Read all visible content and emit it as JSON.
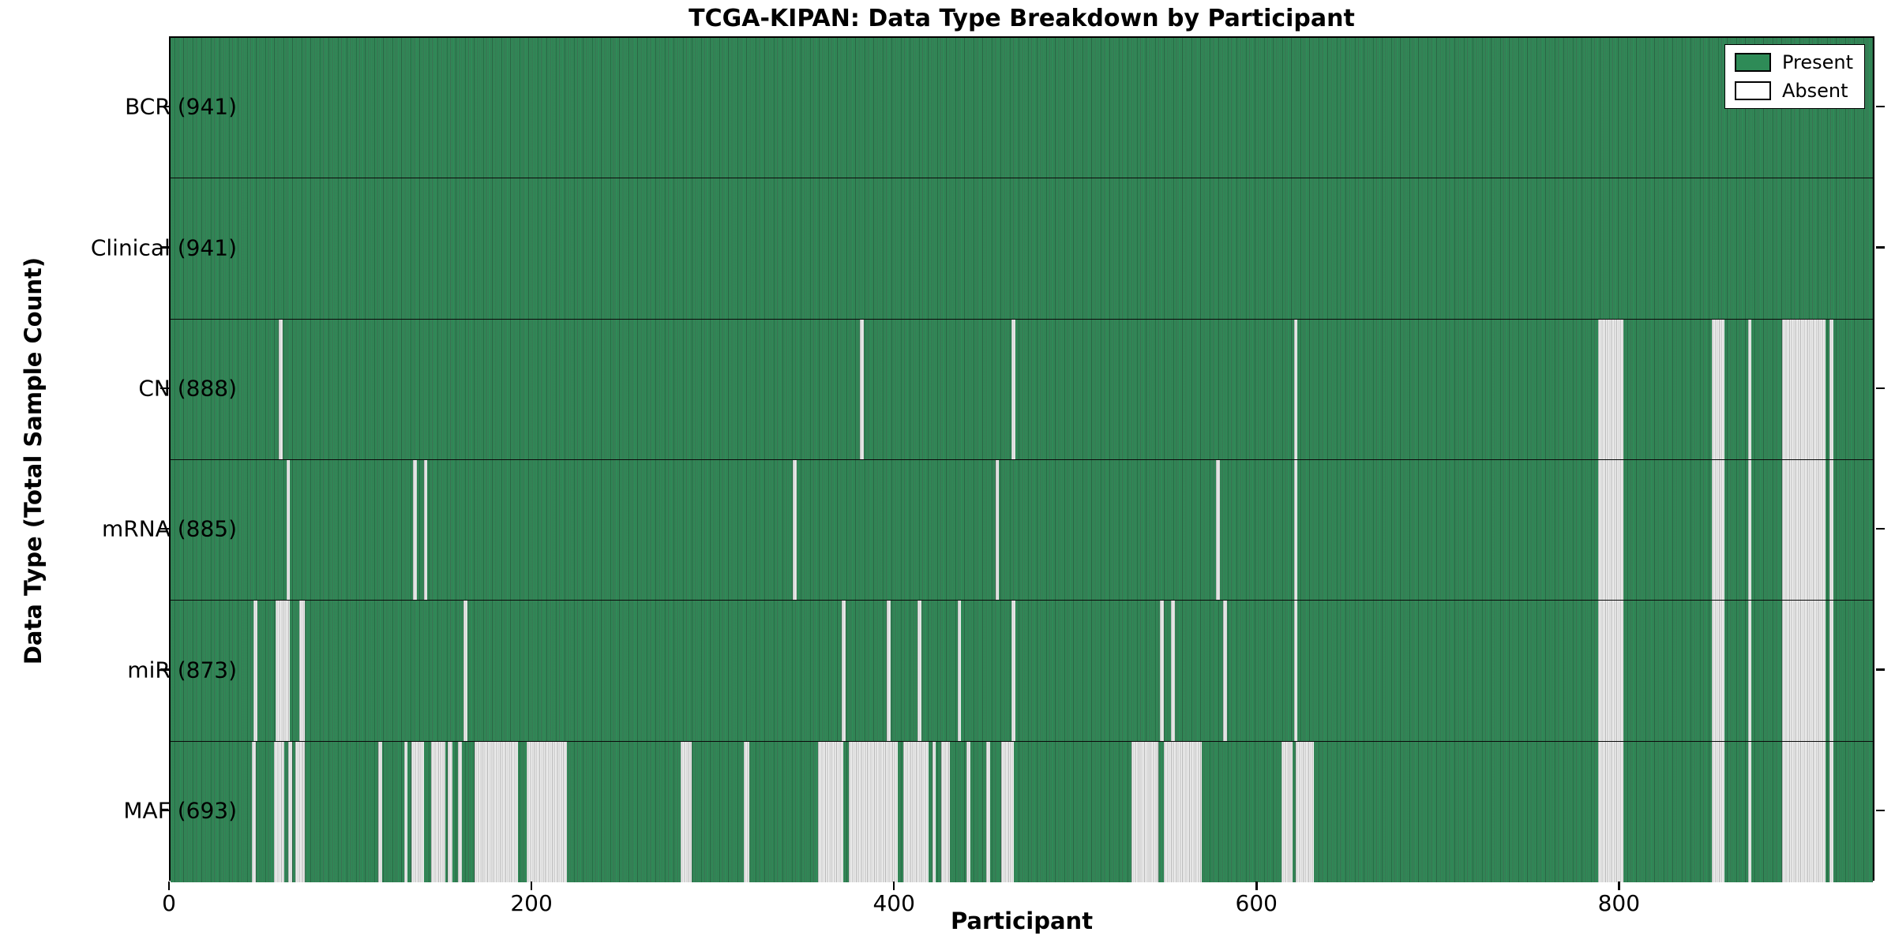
{
  "chart_data": {
    "type": "heatmap",
    "title": "TCGA-KIPAN: Data Type Breakdown by Participant",
    "xlabel": "Participant",
    "ylabel": "Data Type (Total Sample Count)",
    "x_ticks": [
      0,
      200,
      400,
      600,
      800
    ],
    "x_range": [
      0,
      941
    ],
    "grid": false,
    "legend_position": "upper right",
    "legend": [
      {
        "label": "Present",
        "color": "#2e8b57"
      },
      {
        "label": "Absent",
        "color": "#ffffff"
      }
    ],
    "colors": {
      "present": "#2e8b57",
      "absent": "#f0f0f0",
      "bar_edge": "#000000"
    },
    "rows": [
      {
        "data_type": "BCR",
        "total": 941,
        "label": "BCR (941)",
        "absent_ranges": []
      },
      {
        "data_type": "Clinical",
        "total": 941,
        "label": "Clinical (941)",
        "absent_ranges": []
      },
      {
        "data_type": "CN",
        "total": 888,
        "label": "CN (888)",
        "absent_ranges": [
          [
            60,
            62
          ],
          [
            381,
            383
          ],
          [
            465,
            467
          ],
          [
            621,
            623
          ],
          [
            789,
            803
          ],
          [
            852,
            859
          ],
          [
            872,
            874
          ],
          [
            891,
            915
          ],
          [
            917,
            919
          ]
        ]
      },
      {
        "data_type": "mRNA",
        "total": 885,
        "label": "mRNA (885)",
        "absent_ranges": [
          [
            64,
            66
          ],
          [
            134,
            136
          ],
          [
            140,
            142
          ],
          [
            344,
            346
          ],
          [
            456,
            458
          ],
          [
            578,
            580
          ],
          [
            621,
            623
          ],
          [
            789,
            803
          ],
          [
            852,
            859
          ],
          [
            872,
            874
          ],
          [
            891,
            915
          ],
          [
            917,
            919
          ]
        ]
      },
      {
        "data_type": "miR",
        "total": 873,
        "label": "miR (873)",
        "absent_ranges": [
          [
            46,
            48
          ],
          [
            58,
            66
          ],
          [
            71,
            74
          ],
          [
            162,
            164
          ],
          [
            371,
            373
          ],
          [
            396,
            398
          ],
          [
            413,
            415
          ],
          [
            435,
            437
          ],
          [
            465,
            467
          ],
          [
            547,
            549
          ],
          [
            553,
            555
          ],
          [
            582,
            584
          ],
          [
            621,
            623
          ],
          [
            789,
            803
          ],
          [
            852,
            859
          ],
          [
            872,
            874
          ],
          [
            891,
            915
          ],
          [
            917,
            919
          ]
        ]
      },
      {
        "data_type": "MAF",
        "total": 693,
        "label": "MAF (693)",
        "absent_ranges": [
          [
            45,
            47
          ],
          [
            57,
            63
          ],
          [
            65,
            67
          ],
          [
            69,
            74
          ],
          [
            115,
            117
          ],
          [
            129,
            131
          ],
          [
            133,
            140
          ],
          [
            144,
            152
          ],
          [
            153,
            156
          ],
          [
            159,
            161
          ],
          [
            168,
            192
          ],
          [
            197,
            219
          ],
          [
            282,
            288
          ],
          [
            317,
            320
          ],
          [
            358,
            372
          ],
          [
            375,
            402
          ],
          [
            405,
            419
          ],
          [
            421,
            423
          ],
          [
            426,
            431
          ],
          [
            440,
            442
          ],
          [
            451,
            453
          ],
          [
            459,
            466
          ],
          [
            531,
            546
          ],
          [
            549,
            570
          ],
          [
            614,
            620
          ],
          [
            622,
            632
          ],
          [
            789,
            803
          ],
          [
            852,
            859
          ],
          [
            872,
            874
          ],
          [
            891,
            915
          ],
          [
            917,
            919
          ]
        ]
      }
    ]
  }
}
